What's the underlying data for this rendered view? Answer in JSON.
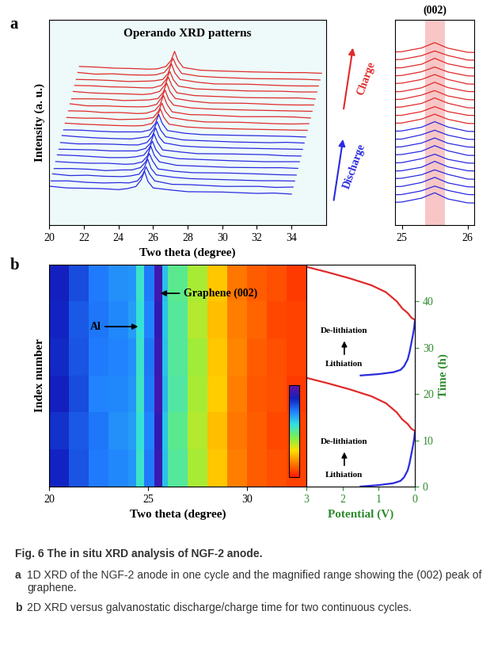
{
  "chart_data": [
    {
      "type": "line",
      "label": "a",
      "title": "Operando XRD patterns",
      "xlabel": "Two theta (degree)",
      "ylabel": "Intensity (a. u.)",
      "xlim": [
        20,
        36
      ],
      "xticks": [
        20,
        22,
        24,
        26,
        28,
        30,
        32,
        34
      ],
      "ylim": [
        0,
        6
      ],
      "tick_labels": "x",
      "annotations": [
        {
          "text": "Discharge",
          "color": "#2a2ae0"
        },
        {
          "text": "Charge",
          "color": "#e02a2a"
        }
      ],
      "x": [
        20,
        21,
        22,
        23,
        24,
        24.5,
        25,
        25.3,
        25.5,
        25.7,
        26,
        27,
        28,
        30,
        32,
        33,
        34
      ],
      "series": [
        {
          "color": "#2a2ae0",
          "values": [
            1.14,
            1.09,
            1.08,
            1.07,
            1.04,
            1.07,
            1.13,
            1.32,
            1.58,
            1.28,
            1.09,
            1.03,
            0.98,
            0.97,
            0.93,
            0.94,
            0.91
          ]
        },
        {
          "color": "#2a2ae0",
          "values": [
            1.11,
            1.11,
            1.07,
            1.05,
            1.06,
            1.05,
            1.11,
            1.29,
            1.52,
            1.31,
            1.11,
            1.01,
            1.0,
            0.95,
            0.95,
            0.92,
            0.93
          ]
        },
        {
          "color": "#2a2ae0",
          "values": [
            1.13,
            1.08,
            1.09,
            1.06,
            1.05,
            1.07,
            1.12,
            1.31,
            1.56,
            1.29,
            1.1,
            1.03,
            0.99,
            0.96,
            0.93,
            0.93,
            0.92
          ]
        },
        {
          "color": "#2a2ae0",
          "values": [
            1.1,
            1.1,
            1.08,
            1.04,
            1.06,
            1.06,
            1.13,
            1.3,
            1.54,
            1.32,
            1.09,
            1.02,
            0.98,
            0.97,
            0.94,
            0.92,
            0.91
          ]
        },
        {
          "color": "#2a2ae0",
          "values": [
            1.12,
            1.09,
            1.07,
            1.07,
            1.04,
            1.05,
            1.11,
            1.28,
            1.57,
            1.3,
            1.11,
            1.01,
            0.99,
            0.95,
            0.94,
            0.94,
            0.92
          ]
        },
        {
          "color": "#2a2ae0",
          "values": [
            1.13,
            1.11,
            1.08,
            1.05,
            1.05,
            1.07,
            1.12,
            1.31,
            1.53,
            1.28,
            1.1,
            1.02,
            1.0,
            0.96,
            0.93,
            0.93,
            0.93
          ]
        },
        {
          "color": "#2a2ae0",
          "values": [
            1.11,
            1.1,
            1.09,
            1.06,
            1.06,
            1.06,
            1.13,
            1.29,
            1.56,
            1.31,
            1.09,
            1.03,
            0.98,
            0.97,
            0.95,
            0.92,
            0.91
          ]
        },
        {
          "color": "#2a2ae0",
          "values": [
            1.12,
            1.08,
            1.08,
            1.07,
            1.05,
            1.05,
            1.12,
            1.3,
            1.55,
            1.29,
            1.11,
            1.02,
            0.99,
            0.96,
            0.94,
            0.93,
            0.92
          ]
        },
        {
          "color": "#2a2ae0",
          "values": [
            1.14,
            1.1,
            1.07,
            1.05,
            1.04,
            1.07,
            1.11,
            1.32,
            1.54,
            1.3,
            1.1,
            1.01,
            0.99,
            0.95,
            0.93,
            0.94,
            0.92
          ]
        },
        {
          "color": "#2a2ae0",
          "values": [
            1.12,
            1.11,
            1.08,
            1.06,
            1.06,
            1.06,
            1.12,
            1.3,
            1.57,
            1.31,
            1.1,
            1.02,
            0.98,
            0.96,
            0.94,
            0.93,
            0.91
          ]
        },
        {
          "color": "#e02a2a",
          "values": [
            1.13,
            1.1,
            1.08,
            1.06,
            1.05,
            1.06,
            1.12,
            1.31,
            1.55,
            1.3,
            1.1,
            1.02,
            0.99,
            0.96,
            0.94,
            0.93,
            0.92
          ]
        },
        {
          "color": "#e02a2a",
          "values": [
            1.11,
            1.09,
            1.09,
            1.05,
            1.06,
            1.07,
            1.11,
            1.29,
            1.53,
            1.29,
            1.11,
            1.03,
            0.98,
            0.97,
            0.93,
            0.92,
            0.93
          ]
        },
        {
          "color": "#e02a2a",
          "values": [
            1.12,
            1.11,
            1.07,
            1.07,
            1.04,
            1.05,
            1.13,
            1.3,
            1.57,
            1.31,
            1.09,
            1.01,
            1.0,
            0.95,
            0.95,
            0.94,
            0.91
          ]
        },
        {
          "color": "#e02a2a",
          "values": [
            1.14,
            1.08,
            1.08,
            1.06,
            1.05,
            1.06,
            1.12,
            1.32,
            1.54,
            1.28,
            1.1,
            1.02,
            0.99,
            0.96,
            0.94,
            0.93,
            0.92
          ]
        },
        {
          "color": "#e02a2a",
          "values": [
            1.1,
            1.1,
            1.09,
            1.05,
            1.06,
            1.07,
            1.11,
            1.29,
            1.56,
            1.3,
            1.11,
            1.03,
            0.98,
            0.97,
            0.93,
            0.92,
            0.92
          ]
        },
        {
          "color": "#e02a2a",
          "values": [
            1.13,
            1.09,
            1.07,
            1.06,
            1.04,
            1.06,
            1.13,
            1.31,
            1.55,
            1.31,
            1.09,
            1.01,
            0.99,
            0.95,
            0.94,
            0.94,
            0.91
          ]
        },
        {
          "color": "#e02a2a",
          "values": [
            1.12,
            1.11,
            1.08,
            1.07,
            1.05,
            1.05,
            1.12,
            1.3,
            1.53,
            1.29,
            1.1,
            1.02,
            1.0,
            0.96,
            0.95,
            0.93,
            0.93
          ]
        },
        {
          "color": "#e02a2a",
          "values": [
            1.11,
            1.1,
            1.08,
            1.05,
            1.06,
            1.07,
            1.11,
            1.28,
            1.57,
            1.3,
            1.11,
            1.03,
            0.98,
            0.97,
            0.93,
            0.92,
            0.92
          ]
        },
        {
          "color": "#e02a2a",
          "values": [
            1.13,
            1.08,
            1.09,
            1.06,
            1.05,
            1.06,
            1.13,
            1.31,
            1.54,
            1.32,
            1.1,
            1.02,
            0.99,
            0.95,
            0.94,
            0.93,
            0.91
          ]
        },
        {
          "color": "#e02a2a",
          "values": [
            1.12,
            1.1,
            1.07,
            1.06,
            1.04,
            1.05,
            1.12,
            1.3,
            1.56,
            1.29,
            1.09,
            1.01,
            0.99,
            0.96,
            0.94,
            0.94,
            0.92
          ]
        }
      ]
    },
    {
      "type": "line",
      "title": "(002)",
      "xlim": [
        24.9,
        26.1
      ],
      "xticks": [
        25,
        26
      ],
      "ylim": [
        0,
        10
      ],
      "tick_labels": "x",
      "band": [
        25.35,
        25.65
      ]
    },
    {
      "type": "heatmap",
      "label": "b",
      "xlabel": "Two theta (degree)",
      "ylabel": "Index number",
      "x_edges": [
        20,
        21,
        22,
        23,
        24,
        24.4,
        24.8,
        25.3,
        25.7,
        26,
        27,
        28,
        29,
        30,
        31,
        32,
        33
      ],
      "xlim": [
        20,
        33
      ],
      "xticks": [
        20,
        25,
        30
      ],
      "ylim": [
        0,
        6
      ],
      "tick_labels": "x",
      "color_range": [
        0,
        1
      ],
      "cells": [
        [
          0.85,
          0.78,
          0.72,
          0.7,
          0.68,
          0.55,
          0.72,
          0.92,
          0.62,
          0.5,
          0.38,
          0.25,
          0.15,
          0.1,
          0.08,
          0.06
        ],
        [
          0.83,
          0.77,
          0.73,
          0.69,
          0.67,
          0.56,
          0.71,
          0.91,
          0.61,
          0.49,
          0.37,
          0.24,
          0.14,
          0.1,
          0.07,
          0.06
        ],
        [
          0.86,
          0.79,
          0.71,
          0.7,
          0.68,
          0.54,
          0.72,
          0.93,
          0.63,
          0.51,
          0.38,
          0.26,
          0.15,
          0.09,
          0.08,
          0.05
        ],
        [
          0.84,
          0.78,
          0.72,
          0.71,
          0.69,
          0.55,
          0.73,
          0.92,
          0.62,
          0.5,
          0.39,
          0.25,
          0.16,
          0.1,
          0.08,
          0.06
        ],
        [
          0.85,
          0.77,
          0.73,
          0.7,
          0.67,
          0.56,
          0.71,
          0.91,
          0.61,
          0.5,
          0.37,
          0.24,
          0.15,
          0.11,
          0.07,
          0.06
        ],
        [
          0.86,
          0.79,
          0.72,
          0.69,
          0.68,
          0.55,
          0.72,
          0.93,
          0.62,
          0.49,
          0.38,
          0.25,
          0.14,
          0.1,
          0.08,
          0.05
        ]
      ],
      "annotations": [
        {
          "text": "Al",
          "x": 24.6
        },
        {
          "text": "Graphene (002)",
          "x": 25.5
        }
      ]
    },
    {
      "type": "line",
      "xlabel": "Potential (V)",
      "ylabel": "Time (h)",
      "color": "#2e8b2e",
      "xlim": [
        3,
        0
      ],
      "xticks": [
        3,
        2,
        1,
        0
      ],
      "ylim": [
        0,
        48
      ],
      "yticks": [
        0,
        10,
        20,
        30,
        40
      ],
      "series": [
        {
          "color": "#2a2ae0",
          "x": [
            1.5,
            1.0,
            0.6,
            0.4,
            0.3,
            0.2,
            0.15,
            0.1,
            0.05,
            0.02,
            0.0
          ],
          "y": [
            0,
            0.3,
            0.7,
            1.2,
            2,
            3.5,
            5,
            7,
            9,
            10.5,
            12
          ]
        },
        {
          "color": "#e02a2a",
          "x": [
            0,
            0.1,
            0.2,
            0.35,
            0.5,
            0.8,
            1.2,
            1.8,
            2.4,
            3.0
          ],
          "y": [
            12,
            12.5,
            13.5,
            14.5,
            16,
            18,
            19.5,
            21,
            22.3,
            23.5
          ]
        },
        {
          "color": "#2a2ae0",
          "x": [
            1.5,
            1.0,
            0.6,
            0.4,
            0.3,
            0.2,
            0.15,
            0.1,
            0.05,
            0.02,
            0.0
          ],
          "y": [
            24,
            24.3,
            24.7,
            25.2,
            26,
            27.5,
            29,
            31,
            33,
            34.5,
            36
          ]
        },
        {
          "color": "#e02a2a",
          "x": [
            0,
            0.1,
            0.2,
            0.35,
            0.5,
            0.8,
            1.2,
            1.8,
            2.4,
            3.0
          ],
          "y": [
            36,
            36.5,
            37.5,
            38.5,
            40,
            42,
            43.5,
            45,
            46.3,
            47.5
          ]
        }
      ],
      "annotations": [
        {
          "text": "Lithiation"
        },
        {
          "text": "De-lithiation"
        },
        {
          "text": "Lithiation"
        },
        {
          "text": "De-lithiation"
        }
      ]
    }
  ],
  "caption": {
    "title": "Fig. 6 The in situ XRD analysis of NGF-2 anode.",
    "parts": [
      {
        "label": "a",
        "text": "1D XRD of the NGF-2 anode in one cycle and the magnified range showing the (002) peak of graphene."
      },
      {
        "label": "b",
        "text": "2D XRD versus galvanostatic discharge/charge time for two continuous cycles."
      }
    ]
  }
}
